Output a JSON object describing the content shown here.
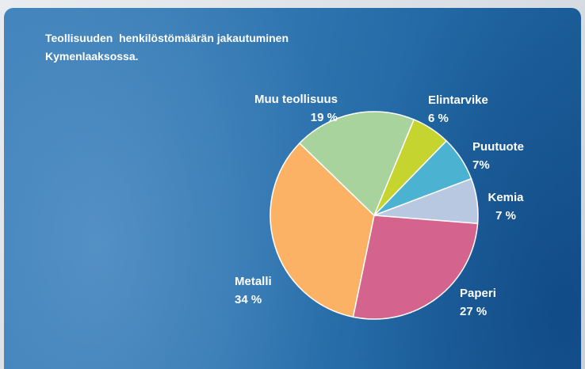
{
  "chart_data": {
    "type": "pie",
    "title": "Teollisuuden  henkilöstömäärän jakautuminen Kymenlaaksossa.",
    "categories": [
      "Elintarvike",
      "Puutuote",
      "Kemia",
      "Paperi",
      "Metalli",
      "Muu teollisuus"
    ],
    "values": [
      6,
      7,
      7,
      27,
      34,
      19
    ],
    "value_labels": [
      "6 %",
      "7%",
      "7 %",
      "27 %",
      "34 %",
      "19 %"
    ],
    "colors": [
      "#c5d42f",
      "#4bb2d2",
      "#b8c8e1",
      "#d4648e",
      "#fbb264",
      "#a9d39c"
    ]
  }
}
